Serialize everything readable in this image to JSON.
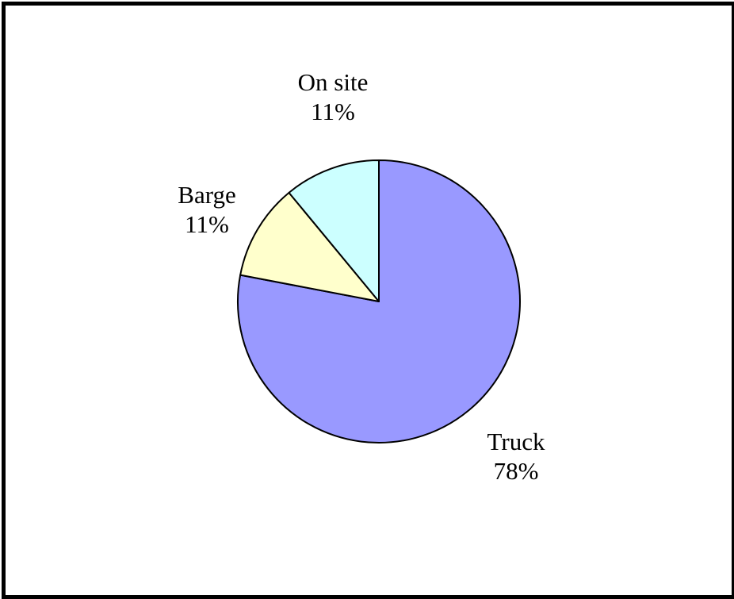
{
  "chart_data": {
    "type": "pie",
    "title": "",
    "start_angle_deg": 0,
    "direction": "clockwise",
    "slices": [
      {
        "label": "Truck",
        "percent_label": "78%",
        "value": 78,
        "color": "#9999ff"
      },
      {
        "label": "Barge",
        "percent_label": "11%",
        "value": 11,
        "color": "#ffffcc"
      },
      {
        "label": "On site",
        "percent_label": "11%",
        "value": 11,
        "color": "#ccffff"
      }
    ],
    "legend": "none",
    "border_color": "#000000"
  }
}
